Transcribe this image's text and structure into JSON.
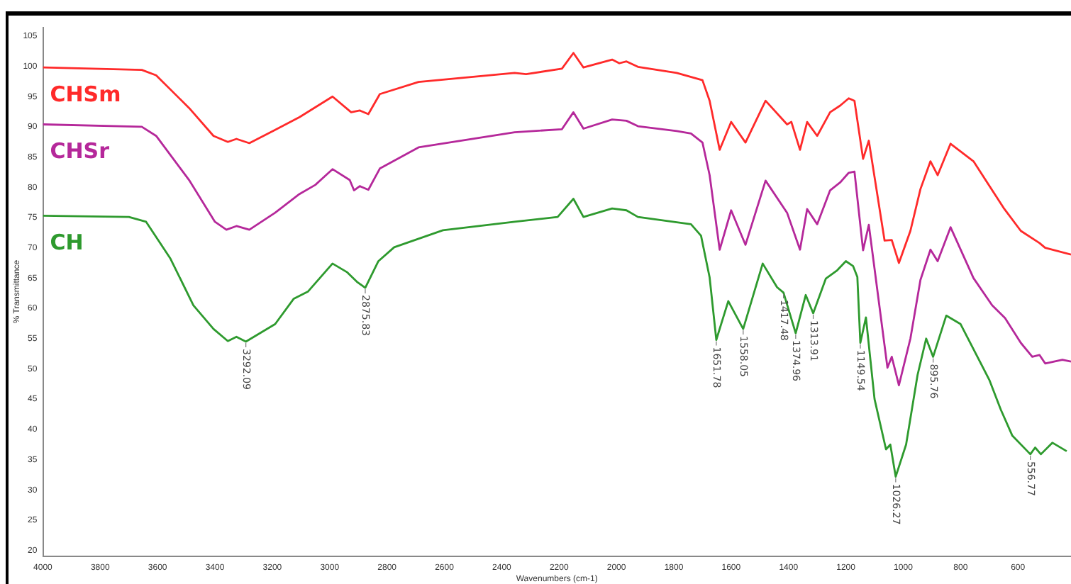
{
  "chart_data": {
    "type": "line",
    "xlabel": "Wavenumbers (cm-1)",
    "ylabel": "% Transmittance",
    "xlim": [
      4000,
      415
    ],
    "xticks": [
      4000,
      3800,
      3600,
      3400,
      3200,
      3000,
      2800,
      2600,
      2400,
      2200,
      2000,
      1800,
      1600,
      1400,
      1200,
      1000,
      800,
      600
    ],
    "ylim": [
      19,
      106.5
    ],
    "yticks": [
      20,
      25,
      30,
      35,
      40,
      45,
      50,
      55,
      60,
      65,
      70,
      75,
      80,
      85,
      90,
      95,
      100,
      105
    ],
    "grid": false,
    "legend": false,
    "marker": "none",
    "line_style": "solid",
    "series": [
      {
        "name": "CHSm",
        "color": "#ff2a2a",
        "x": [
          4000,
          3655,
          3605,
          3490,
          3405,
          3355,
          3325,
          3280,
          3190,
          3105,
          2990,
          2925,
          2895,
          2865,
          2825,
          2690,
          2355,
          2315,
          2190,
          2150,
          2115,
          2015,
          1990,
          1965,
          1925,
          1790,
          1700,
          1675,
          1640,
          1600,
          1550,
          1480,
          1405,
          1390,
          1360,
          1335,
          1300,
          1255,
          1220,
          1190,
          1170,
          1140,
          1120,
          1065,
          1040,
          1015,
          975,
          940,
          905,
          880,
          835,
          755,
          650,
          590,
          525,
          505,
          415
        ],
        "values": [
          99.8,
          99.4,
          98.5,
          93.1,
          88.5,
          87.5,
          88,
          87.3,
          89.5,
          91.6,
          95,
          92.4,
          92.7,
          92.1,
          95.4,
          97.4,
          98.9,
          98.7,
          99.6,
          102.2,
          99.8,
          101.1,
          100.5,
          100.8,
          99.9,
          98.9,
          97.7,
          94.3,
          86.2,
          90.8,
          87.4,
          94.3,
          90.4,
          90.8,
          86.2,
          90.8,
          88.5,
          92.4,
          93.5,
          94.7,
          94.3,
          84.7,
          87.7,
          71.2,
          71.3,
          67.5,
          72.8,
          79.7,
          84.3,
          82,
          87.2,
          84.3,
          76.6,
          72.8,
          70.8,
          70,
          68.9
        ]
      },
      {
        "name": "CHSr",
        "color": "#b5289a",
        "x": [
          4000,
          3655,
          3605,
          3490,
          3400,
          3360,
          3325,
          3280,
          3190,
          3105,
          3050,
          2990,
          2930,
          2915,
          2895,
          2865,
          2825,
          2690,
          2355,
          2190,
          2150,
          2115,
          2015,
          1965,
          1925,
          1790,
          1740,
          1700,
          1675,
          1640,
          1600,
          1550,
          1480,
          1405,
          1360,
          1335,
          1300,
          1255,
          1220,
          1190,
          1170,
          1140,
          1120,
          1055,
          1040,
          1015,
          975,
          940,
          905,
          880,
          835,
          755,
          690,
          645,
          590,
          550,
          525,
          505,
          445,
          415
        ],
        "values": [
          90.4,
          90,
          88.5,
          81.2,
          74.3,
          73,
          73.6,
          73,
          75.8,
          78.9,
          80.4,
          83,
          81.2,
          79.5,
          80.2,
          79.6,
          83.1,
          86.6,
          89.1,
          89.6,
          92.4,
          89.7,
          91.2,
          91,
          90.1,
          89.3,
          88.9,
          87.4,
          82,
          69.7,
          76.2,
          70.5,
          81.1,
          75.8,
          69.7,
          76.4,
          73.9,
          79.5,
          80.8,
          82.4,
          82.6,
          69.6,
          73.8,
          50.2,
          52,
          47.3,
          55,
          64.7,
          69.7,
          67.8,
          73.4,
          65,
          60.5,
          58.4,
          54.3,
          52,
          52.3,
          50.9,
          51.5,
          51.2
        ]
      },
      {
        "name": "CH",
        "color": "#2e9a2e",
        "x": [
          4000,
          3700,
          3640,
          3555,
          3475,
          3405,
          3355,
          3325,
          3292.09,
          3190,
          3125,
          3075,
          2990,
          2940,
          2905,
          2875.83,
          2830,
          2775,
          2605,
          2355,
          2205,
          2150,
          2115,
          2015,
          1965,
          1925,
          1740,
          1705,
          1675,
          1651.78,
          1610,
          1558.05,
          1490,
          1440,
          1417.48,
          1374.96,
          1340,
          1313.91,
          1270,
          1230,
          1200,
          1175,
          1160,
          1149.54,
          1130,
          1100,
          1060,
          1045,
          1026.27,
          990,
          950,
          920,
          895.76,
          850,
          800,
          700,
          660,
          620,
          556.77,
          540,
          520,
          480,
          430
        ],
        "values": [
          75.3,
          75.1,
          74.3,
          68.2,
          60.5,
          56.6,
          54.6,
          55.3,
          54.5,
          57.4,
          61.6,
          62.8,
          67.4,
          66,
          64.4,
          63.4,
          67.8,
          70.1,
          72.9,
          74.3,
          75.1,
          78.1,
          75.1,
          76.5,
          76.2,
          75.1,
          73.9,
          72,
          65.1,
          54.8,
          61.2,
          56.6,
          67.4,
          63.5,
          62.6,
          55.9,
          62.2,
          59.2,
          64.9,
          66.3,
          67.8,
          67,
          65.2,
          54.3,
          58.5,
          45,
          36.7,
          37.5,
          32.2,
          37.5,
          49,
          55,
          52,
          58.8,
          57.4,
          48.2,
          43.3,
          39,
          35.9,
          37,
          35.9,
          37.8,
          36.4
        ]
      }
    ],
    "annotations": [
      {
        "text": "3292.09",
        "x": 3292.09,
        "y": 54.5
      },
      {
        "text": "2875.83",
        "x": 2875.83,
        "y": 63.4
      },
      {
        "text": "1651.78",
        "x": 1651.78,
        "y": 54.8
      },
      {
        "text": "1558.05",
        "x": 1558.05,
        "y": 56.6
      },
      {
        "text": "1417.48",
        "x": 1417.48,
        "y": 62.6
      },
      {
        "text": "1374.96",
        "x": 1374.96,
        "y": 55.9
      },
      {
        "text": "1313.91",
        "x": 1313.91,
        "y": 59.2
      },
      {
        "text": "1149.54",
        "x": 1149.54,
        "y": 54.3
      },
      {
        "text": "1026.27",
        "x": 1026.27,
        "y": 32.2
      },
      {
        "text": "895.76",
        "x": 895.76,
        "y": 52
      },
      {
        "text": "556.77",
        "x": 556.77,
        "y": 35.9
      }
    ]
  }
}
